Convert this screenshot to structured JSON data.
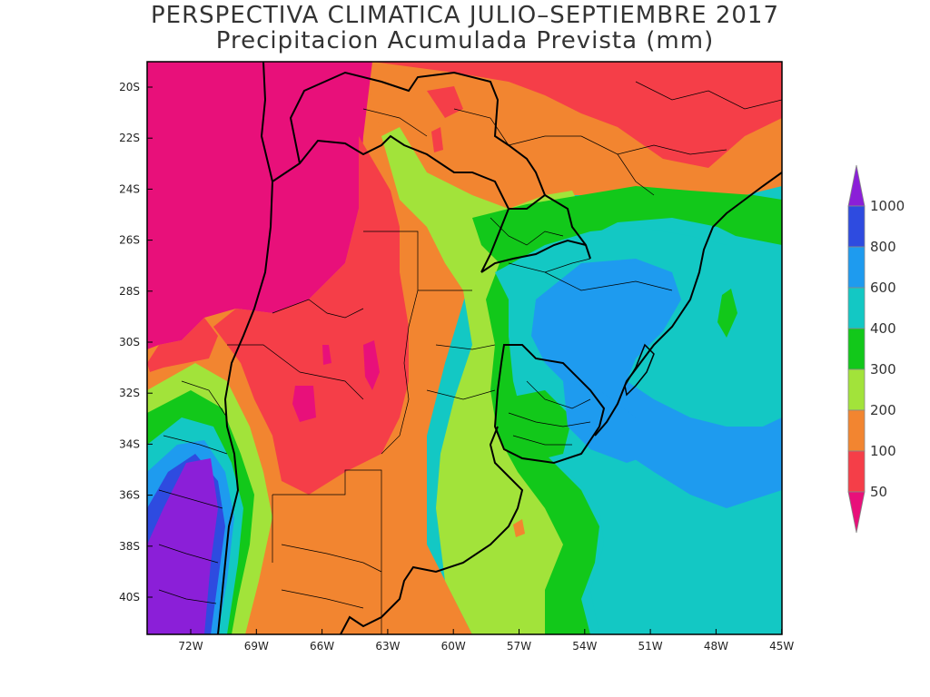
{
  "title": "PERSPECTIVA CLIMATICA JULIO–SEPTIEMBRE 2017",
  "subtitle": "Precipitacion Acumulada Prevista (mm)",
  "latitude_labels": [
    "20S",
    "22S",
    "24S",
    "26S",
    "28S",
    "30S",
    "32S",
    "34S",
    "36S",
    "38S",
    "40S"
  ],
  "longitude_labels": [
    "72W",
    "69W",
    "66W",
    "63W",
    "60W",
    "57W",
    "54W",
    "51W",
    "48W",
    "45W"
  ],
  "legend": {
    "levels": [
      "1000",
      "800",
      "600",
      "400",
      "300",
      "200",
      "100",
      "50"
    ],
    "colors": {
      "gt_1000": "#8B1FD8",
      "800_1000": "#2E4BE0",
      "600_800": "#1E9BEF",
      "400_600": "#13C8C4",
      "300_400": "#12C81A",
      "200_300": "#A2E33A",
      "100_200": "#F28530",
      "50_100": "#F53E48",
      "lt_50": "#E8107A"
    }
  }
}
